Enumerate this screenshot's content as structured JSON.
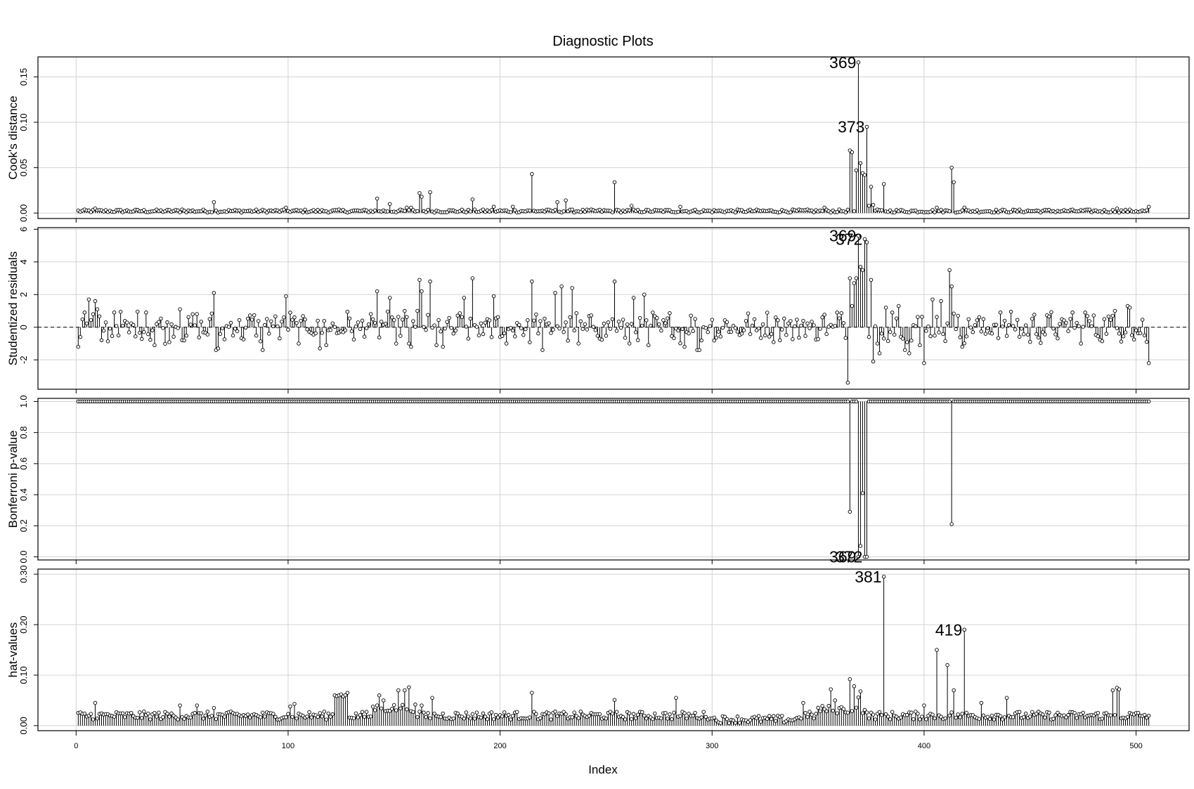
{
  "chart_data": {
    "type": "scatter",
    "title": "Diagnostic Plots",
    "xlabel": "Index",
    "xlim": [
      -18,
      525
    ],
    "xticks": [
      0,
      100,
      200,
      300,
      400,
      500
    ],
    "n": 506,
    "panels": [
      {
        "id": "cooks",
        "ylabel": "Cook's distance",
        "ylim": [
          -0.006,
          0.172
        ],
        "yticks": [
          "0.00",
          "0.05",
          "0.10",
          "0.15"
        ],
        "baseline": 0,
        "grid": true,
        "labeled": [
          {
            "index": 369,
            "label": "369"
          },
          {
            "index": 373,
            "label": "373"
          }
        ],
        "points": [
          [
            9,
            0.005
          ],
          [
            50,
            0.004
          ],
          [
            65,
            0.012
          ],
          [
            99,
            0.006
          ],
          [
            142,
            0.016
          ],
          [
            148,
            0.01
          ],
          [
            156,
            0.006
          ],
          [
            158,
            0.006
          ],
          [
            162,
            0.022
          ],
          [
            163,
            0.018
          ],
          [
            167,
            0.023
          ],
          [
            187,
            0.015
          ],
          [
            197,
            0.007
          ],
          [
            206,
            0.007
          ],
          [
            215,
            0.043
          ],
          [
            227,
            0.012
          ],
          [
            231,
            0.014
          ],
          [
            254,
            0.034
          ],
          [
            262,
            0.008
          ],
          [
            285,
            0.007
          ],
          [
            353,
            0.006
          ],
          [
            365,
            0.069
          ],
          [
            366,
            0.067
          ],
          [
            368,
            0.047
          ],
          [
            369,
            0.166
          ],
          [
            370,
            0.055
          ],
          [
            371,
            0.044
          ],
          [
            372,
            0.042
          ],
          [
            373,
            0.095
          ],
          [
            374,
            0.008
          ],
          [
            375,
            0.029
          ],
          [
            376,
            0.009
          ],
          [
            381,
            0.032
          ],
          [
            406,
            0.006
          ],
          [
            413,
            0.05
          ],
          [
            414,
            0.034
          ],
          [
            419,
            0.006
          ],
          [
            491,
            0.005
          ],
          [
            506,
            0.007
          ]
        ]
      },
      {
        "id": "studres",
        "ylabel": "Studentized residuals",
        "ylim": [
          -3.8,
          6.1
        ],
        "yticks": [
          "-2",
          "0",
          "2",
          "4",
          "6"
        ],
        "baseline": 0,
        "grid": true,
        "labeled": [
          {
            "index": 369,
            "label": "369"
          },
          {
            "index": 372,
            "label": "372"
          }
        ],
        "points": [
          [
            1,
            -1.2
          ],
          [
            2,
            -0.6
          ],
          [
            4,
            0.9
          ],
          [
            6,
            1.7
          ],
          [
            8,
            0.8
          ],
          [
            9,
            1.6
          ],
          [
            10,
            1.1
          ],
          [
            12,
            -0.8
          ],
          [
            18,
            0.9
          ],
          [
            33,
            0.9
          ],
          [
            37,
            -1.1
          ],
          [
            49,
            1.1
          ],
          [
            65,
            2.1
          ],
          [
            66,
            -1.4
          ],
          [
            67,
            -1.3
          ],
          [
            88,
            -1.4
          ],
          [
            98,
            0.6
          ],
          [
            99,
            1.9
          ],
          [
            115,
            -1.3
          ],
          [
            118,
            -1.1
          ],
          [
            142,
            2.2
          ],
          [
            148,
            1.8
          ],
          [
            155,
            1.0
          ],
          [
            157,
            -1.0
          ],
          [
            158,
            -1.2
          ],
          [
            161,
            1.0
          ],
          [
            162,
            2.9
          ],
          [
            163,
            2.2
          ],
          [
            167,
            2.8
          ],
          [
            170,
            -1.1
          ],
          [
            173,
            -1.2
          ],
          [
            183,
            1.8
          ],
          [
            187,
            3.0
          ],
          [
            190,
            -0.5
          ],
          [
            197,
            1.9
          ],
          [
            200,
            -0.6
          ],
          [
            203,
            -1.0
          ],
          [
            215,
            2.8
          ],
          [
            220,
            -1.4
          ],
          [
            226,
            2.1
          ],
          [
            229,
            2.5
          ],
          [
            234,
            2.4
          ],
          [
            237,
            -1.0
          ],
          [
            254,
            2.8
          ],
          [
            261,
            -1.0
          ],
          [
            263,
            1.8
          ],
          [
            268,
            2.0
          ],
          [
            270,
            -1.1
          ],
          [
            287,
            -1.2
          ],
          [
            293,
            -1.4
          ],
          [
            294,
            -1.4
          ],
          [
            330,
            0.6
          ],
          [
            352,
            0.6
          ],
          [
            359,
            0.9
          ],
          [
            364,
            -3.4
          ],
          [
            365,
            3.0
          ],
          [
            366,
            1.3
          ],
          [
            367,
            2.7
          ],
          [
            368,
            3.0
          ],
          [
            369,
            5.6
          ],
          [
            370,
            3.7
          ],
          [
            371,
            3.5
          ],
          [
            372,
            5.4
          ],
          [
            373,
            5.2
          ],
          [
            374,
            -0.6
          ],
          [
            375,
            2.9
          ],
          [
            376,
            -2.1
          ],
          [
            378,
            -1.0
          ],
          [
            379,
            -1.6
          ],
          [
            382,
            1.2
          ],
          [
            385,
            0.9
          ],
          [
            388,
            1.3
          ],
          [
            391,
            -1.4
          ],
          [
            393,
            -1.6
          ],
          [
            398,
            -1.1
          ],
          [
            400,
            -2.2
          ],
          [
            404,
            1.7
          ],
          [
            408,
            1.6
          ],
          [
            412,
            3.5
          ],
          [
            413,
            2.5
          ],
          [
            416,
            0.7
          ],
          [
            418,
            -1.2
          ],
          [
            436,
            0.9
          ],
          [
            450,
            -0.9
          ],
          [
            470,
            0.9
          ],
          [
            476,
            0.9
          ],
          [
            490,
            1.0
          ],
          [
            496,
            1.3
          ],
          [
            497,
            1.2
          ],
          [
            504,
            -0.5
          ],
          [
            505,
            -0.9
          ],
          [
            506,
            -2.2
          ]
        ]
      },
      {
        "id": "bonf",
        "ylabel": "Bonferroni p-value",
        "ylim": [
          -0.02,
          1.02
        ],
        "yticks": [
          "0.0",
          "0.2",
          "0.4",
          "0.6",
          "0.8",
          "1.0"
        ],
        "baseline": 1,
        "grid": true,
        "labeled": [
          {
            "index": 369,
            "label": "369"
          },
          {
            "index": 372,
            "label": "372"
          }
        ],
        "points": [
          [
            365,
            0.29
          ],
          [
            369,
            0.0
          ],
          [
            370,
            0.07
          ],
          [
            371,
            0.41
          ],
          [
            372,
            0.0
          ],
          [
            373,
            0.0
          ],
          [
            413,
            0.21
          ]
        ]
      },
      {
        "id": "hat",
        "ylabel": "hat-values",
        "ylim": [
          -0.01,
          0.31
        ],
        "yticks": [
          "0.00",
          "0.10",
          "0.20",
          "0.30"
        ],
        "baseline": 0,
        "grid": true,
        "labeled": [
          {
            "index": 381,
            "label": "381"
          },
          {
            "index": 419,
            "label": "419"
          }
        ],
        "points": [
          [
            9,
            0.045
          ],
          [
            49,
            0.04
          ],
          [
            57,
            0.04
          ],
          [
            65,
            0.035
          ],
          [
            101,
            0.038
          ],
          [
            103,
            0.043
          ],
          [
            122,
            0.06
          ],
          [
            124,
            0.06
          ],
          [
            126,
            0.058
          ],
          [
            128,
            0.065
          ],
          [
            143,
            0.06
          ],
          [
            145,
            0.05
          ],
          [
            152,
            0.07
          ],
          [
            155,
            0.07
          ],
          [
            157,
            0.076
          ],
          [
            163,
            0.04
          ],
          [
            168,
            0.055
          ],
          [
            215,
            0.065
          ],
          [
            254,
            0.051
          ],
          [
            283,
            0.055
          ],
          [
            343,
            0.045
          ],
          [
            356,
            0.072
          ],
          [
            358,
            0.05
          ],
          [
            365,
            0.092
          ],
          [
            367,
            0.078
          ],
          [
            369,
            0.056
          ],
          [
            370,
            0.068
          ],
          [
            381,
            0.295
          ],
          [
            400,
            0.04
          ],
          [
            406,
            0.15
          ],
          [
            411,
            0.12
          ],
          [
            414,
            0.07
          ],
          [
            419,
            0.19
          ],
          [
            427,
            0.045
          ],
          [
            439,
            0.055
          ],
          [
            489,
            0.07
          ],
          [
            491,
            0.075
          ],
          [
            492,
            0.072
          ]
        ]
      }
    ]
  }
}
